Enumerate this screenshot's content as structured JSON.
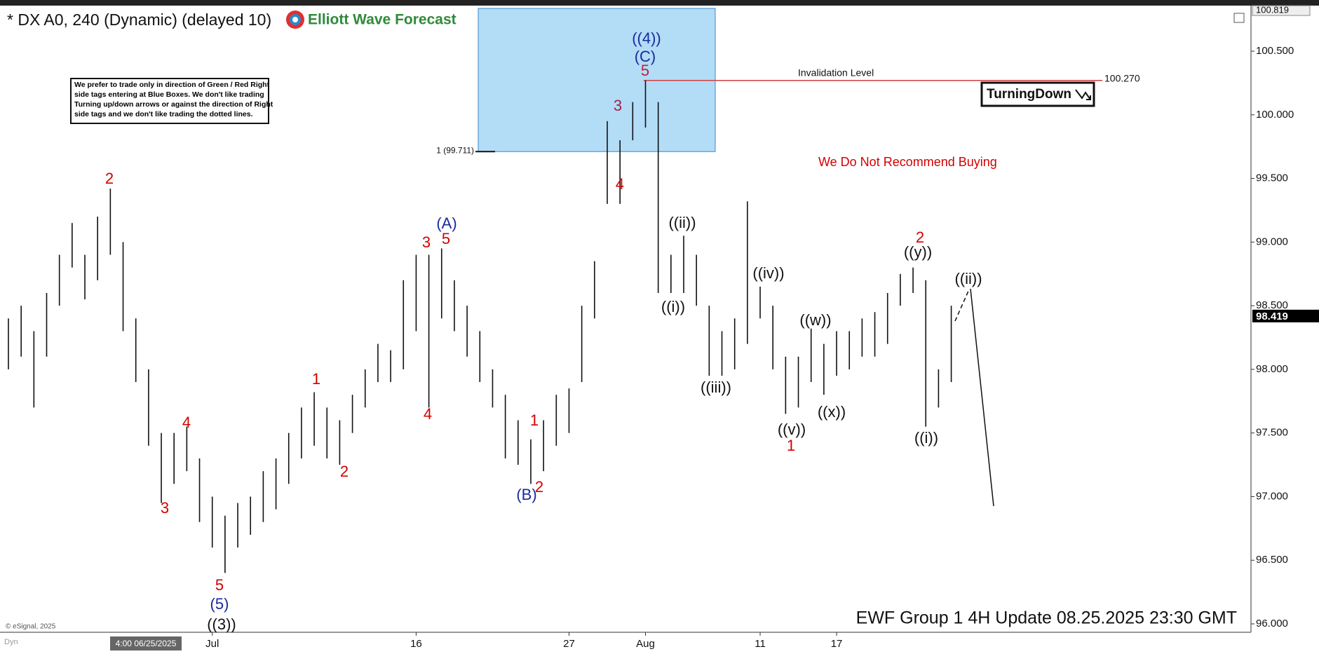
{
  "chart_data": {
    "type": "ohlc",
    "title": "* DX A0, 240 (Dynamic) (delayed 10)",
    "brand": "Elliott Wave Forecast",
    "disclaimer": [
      "We prefer to trade only in direction of Green / Red Right",
      "side tags entering at Blue Boxes. We don't like trading",
      "Turning up/down arrows or against the direction of Right",
      "side tags and we don't like trading the dotted lines."
    ],
    "categories": [
      null,
      null,
      null,
      null,
      null,
      null,
      null,
      null,
      null,
      null,
      null,
      null,
      null,
      null,
      null,
      null,
      "Jul",
      null,
      null,
      null,
      null,
      null,
      null,
      null,
      null,
      null,
      null,
      null,
      null,
      null,
      null,
      null,
      "16",
      null,
      null,
      null,
      null,
      null,
      null,
      null,
      null,
      null,
      null,
      null,
      "27",
      null,
      null,
      null,
      null,
      null,
      "Aug",
      null,
      null,
      null,
      null,
      null,
      null,
      null,
      null,
      "11",
      null,
      null,
      null,
      null,
      null,
      "17",
      null,
      null,
      null,
      null,
      null,
      null,
      null,
      null,
      null
    ],
    "low": [
      98.0,
      98.1,
      97.7,
      98.1,
      98.5,
      98.8,
      98.55,
      98.7,
      98.9,
      98.3,
      97.9,
      97.4,
      96.95,
      97.1,
      97.2,
      96.8,
      96.6,
      96.4,
      96.6,
      96.7,
      96.8,
      96.9,
      97.1,
      97.3,
      97.4,
      97.3,
      97.25,
      97.5,
      97.7,
      97.9,
      97.9,
      98.0,
      98.3,
      97.7,
      98.4,
      98.3,
      98.1,
      97.9,
      97.7,
      97.3,
      97.25,
      97.1,
      97.2,
      97.4,
      97.5,
      97.9,
      98.4,
      99.3,
      99.3,
      99.8,
      99.9,
      98.6,
      98.6,
      98.6,
      98.5,
      97.95,
      97.95,
      98.0,
      98.2,
      98.4,
      98.0,
      97.65,
      97.7,
      97.9,
      97.8,
      97.95,
      98.0,
      98.1,
      98.1,
      98.2,
      98.5,
      98.6,
      97.55,
      97.7,
      97.9
    ],
    "high": [
      98.4,
      98.5,
      98.3,
      98.6,
      98.9,
      99.15,
      98.9,
      99.2,
      99.42,
      99.0,
      98.4,
      98.0,
      97.5,
      97.5,
      97.55,
      97.3,
      97.0,
      96.85,
      96.95,
      97.0,
      97.2,
      97.3,
      97.5,
      97.7,
      97.82,
      97.7,
      97.6,
      97.8,
      98.0,
      98.2,
      98.15,
      98.7,
      98.9,
      98.9,
      98.95,
      98.7,
      98.5,
      98.3,
      98.0,
      97.8,
      97.6,
      97.45,
      97.6,
      97.8,
      97.85,
      98.5,
      98.85,
      99.95,
      99.8,
      100.1,
      100.27,
      100.1,
      98.9,
      99.05,
      98.9,
      98.5,
      98.3,
      98.4,
      99.32,
      98.65,
      98.5,
      98.1,
      98.1,
      98.32,
      98.2,
      98.3,
      98.3,
      98.4,
      98.45,
      98.6,
      98.75,
      98.8,
      98.7,
      98.0,
      98.5
    ],
    "bar_color": "#111111",
    "ylim": [
      95.934,
      100.836
    ],
    "yticks": [
      {
        "value": 96,
        "label": "96.000"
      },
      {
        "value": 96.5,
        "label": "96.500"
      },
      {
        "value": 97,
        "label": "97.000"
      },
      {
        "value": 97.5,
        "label": "97.500"
      },
      {
        "value": 98,
        "label": "98.000"
      },
      {
        "value": 98.5,
        "label": "98.500"
      },
      {
        "value": 99,
        "label": "99.000"
      },
      {
        "value": 99.5,
        "label": "99.500"
      },
      {
        "value": 100,
        "label": "100.000"
      },
      {
        "value": 100.5,
        "label": "100.500"
      }
    ],
    "top_price": {
      "value": 100.819,
      "label": "100.819"
    },
    "last_price": {
      "value": 98.419,
      "label": "98.419"
    },
    "blue_box": {
      "low": 99.711,
      "label": "1 (99.711)",
      "color": "#b3dcf7"
    },
    "invalidation": {
      "text": "Invalidation Level",
      "value": 100.27,
      "label": "100.270",
      "color": "#d04040"
    },
    "tag": "TurningDown",
    "warning": "We Do Not Recommend Buying",
    "footer": "EWF Group 1 4H  Update 08.25.2025 23:30 GMT",
    "cursor_label": "4:00 06/25/2025",
    "copyright": "© eSignal, 2025",
    "mode": "Dyn",
    "annotations": [
      {
        "text": "((4))",
        "color": "#1a2a9a"
      },
      {
        "text": "(C)",
        "color": "#1a2a9a"
      },
      {
        "text": "5",
        "color": "#c0203a"
      },
      {
        "text": "3",
        "color": "#a0204a"
      },
      {
        "text": "4",
        "color": "#d40000"
      },
      {
        "text": "2",
        "color": "#d40000"
      },
      {
        "text": "3",
        "color": "#d40000"
      },
      {
        "text": "4",
        "color": "#d40000"
      },
      {
        "text": "5",
        "color": "#d40000"
      },
      {
        "text": "(5)",
        "color": "#1a2a9a"
      },
      {
        "text": "((3))",
        "color": "#111111"
      },
      {
        "text": "1",
        "color": "#d40000"
      },
      {
        "text": "2",
        "color": "#d40000"
      },
      {
        "text": "3",
        "color": "#d40000"
      },
      {
        "text": "4",
        "color": "#d40000"
      },
      {
        "text": "5",
        "color": "#d40000"
      },
      {
        "text": "(A)",
        "color": "#1a2a9a"
      },
      {
        "text": "1",
        "color": "#d40000"
      },
      {
        "text": "2",
        "color": "#d40000"
      },
      {
        "text": "(B)",
        "color": "#1a2a9a"
      },
      {
        "text": "((i))",
        "color": "#111111"
      },
      {
        "text": "((ii))",
        "color": "#111111"
      },
      {
        "text": "((iii))",
        "color": "#111111"
      },
      {
        "text": "((iv))",
        "color": "#111111"
      },
      {
        "text": "((v))",
        "color": "#111111"
      },
      {
        "text": "1",
        "color": "#d40000"
      },
      {
        "text": "((w))",
        "color": "#111111"
      },
      {
        "text": "((x))",
        "color": "#111111"
      },
      {
        "text": "2",
        "color": "#d40000"
      },
      {
        "text": "((y))",
        "color": "#111111"
      },
      {
        "text": "((i))",
        "color": "#111111"
      },
      {
        "text": "((ii))",
        "color": "#111111"
      }
    ]
  }
}
